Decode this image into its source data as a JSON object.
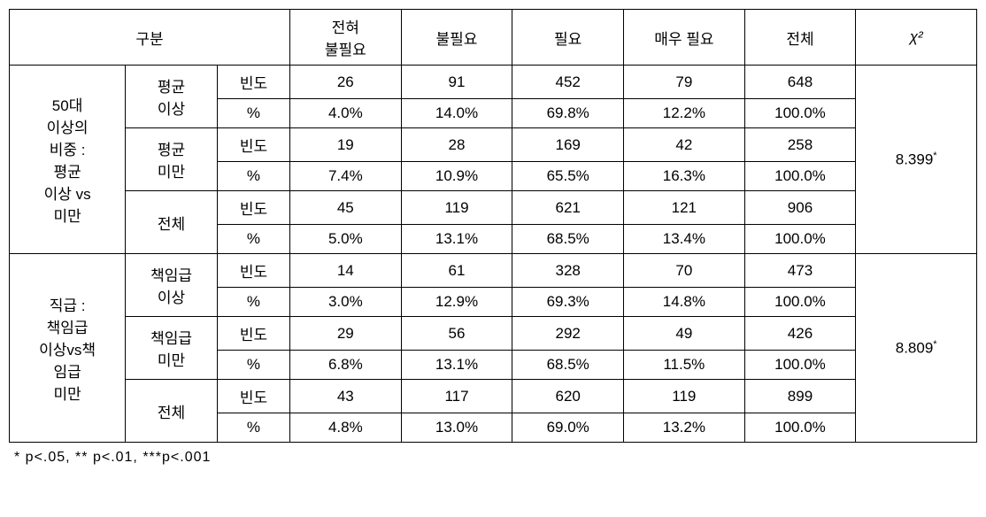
{
  "table": {
    "header": {
      "gubun": "구분",
      "col1": "전혀\n불필요",
      "col2": "불필요",
      "col3": "필요",
      "col4": "매우 필요",
      "col5": "전체",
      "chi": "χ²"
    },
    "section1": {
      "label": "50대\n이상의\n비중 :\n평균\n이상 vs\n미만",
      "group1": {
        "label": "평균\n이상",
        "freq_label": "빈도",
        "pct_label": "%",
        "freq": [
          "26",
          "91",
          "452",
          "79",
          "648"
        ],
        "pct": [
          "4.0%",
          "14.0%",
          "69.8%",
          "12.2%",
          "100.0%"
        ]
      },
      "group2": {
        "label": "평균\n미만",
        "freq_label": "빈도",
        "pct_label": "%",
        "freq": [
          "19",
          "28",
          "169",
          "42",
          "258"
        ],
        "pct": [
          "7.4%",
          "10.9%",
          "65.5%",
          "16.3%",
          "100.0%"
        ]
      },
      "total": {
        "label": "전체",
        "freq_label": "빈도",
        "pct_label": "%",
        "freq": [
          "45",
          "119",
          "621",
          "121",
          "906"
        ],
        "pct": [
          "5.0%",
          "13.1%",
          "68.5%",
          "13.4%",
          "100.0%"
        ]
      },
      "chi": "8.399",
      "chi_sup": "*"
    },
    "section2": {
      "label": "직급 :\n책임급\n이상vs책\n임급\n미만",
      "group1": {
        "label": "책임급\n이상",
        "freq_label": "빈도",
        "pct_label": "%",
        "freq": [
          "14",
          "61",
          "328",
          "70",
          "473"
        ],
        "pct": [
          "3.0%",
          "12.9%",
          "69.3%",
          "14.8%",
          "100.0%"
        ]
      },
      "group2": {
        "label": "책임급\n미만",
        "freq_label": "빈도",
        "pct_label": "%",
        "freq": [
          "29",
          "56",
          "292",
          "49",
          "426"
        ],
        "pct": [
          "6.8%",
          "13.1%",
          "68.5%",
          "11.5%",
          "100.0%"
        ]
      },
      "total": {
        "label": "전체",
        "freq_label": "빈도",
        "pct_label": "%",
        "freq": [
          "43",
          "117",
          "620",
          "119",
          "899"
        ],
        "pct": [
          "4.8%",
          "13.0%",
          "69.0%",
          "13.2%",
          "100.0%"
        ]
      },
      "chi": "8.809",
      "chi_sup": "*"
    },
    "footnote": "* p<.05, ** p<.01, ***p<.001"
  },
  "colwidths": {
    "c1": 120,
    "c2": 95,
    "c3": 75,
    "c4": 115,
    "c5": 115,
    "c6": 115,
    "c7": 125,
    "c8": 115,
    "c9": 125
  }
}
